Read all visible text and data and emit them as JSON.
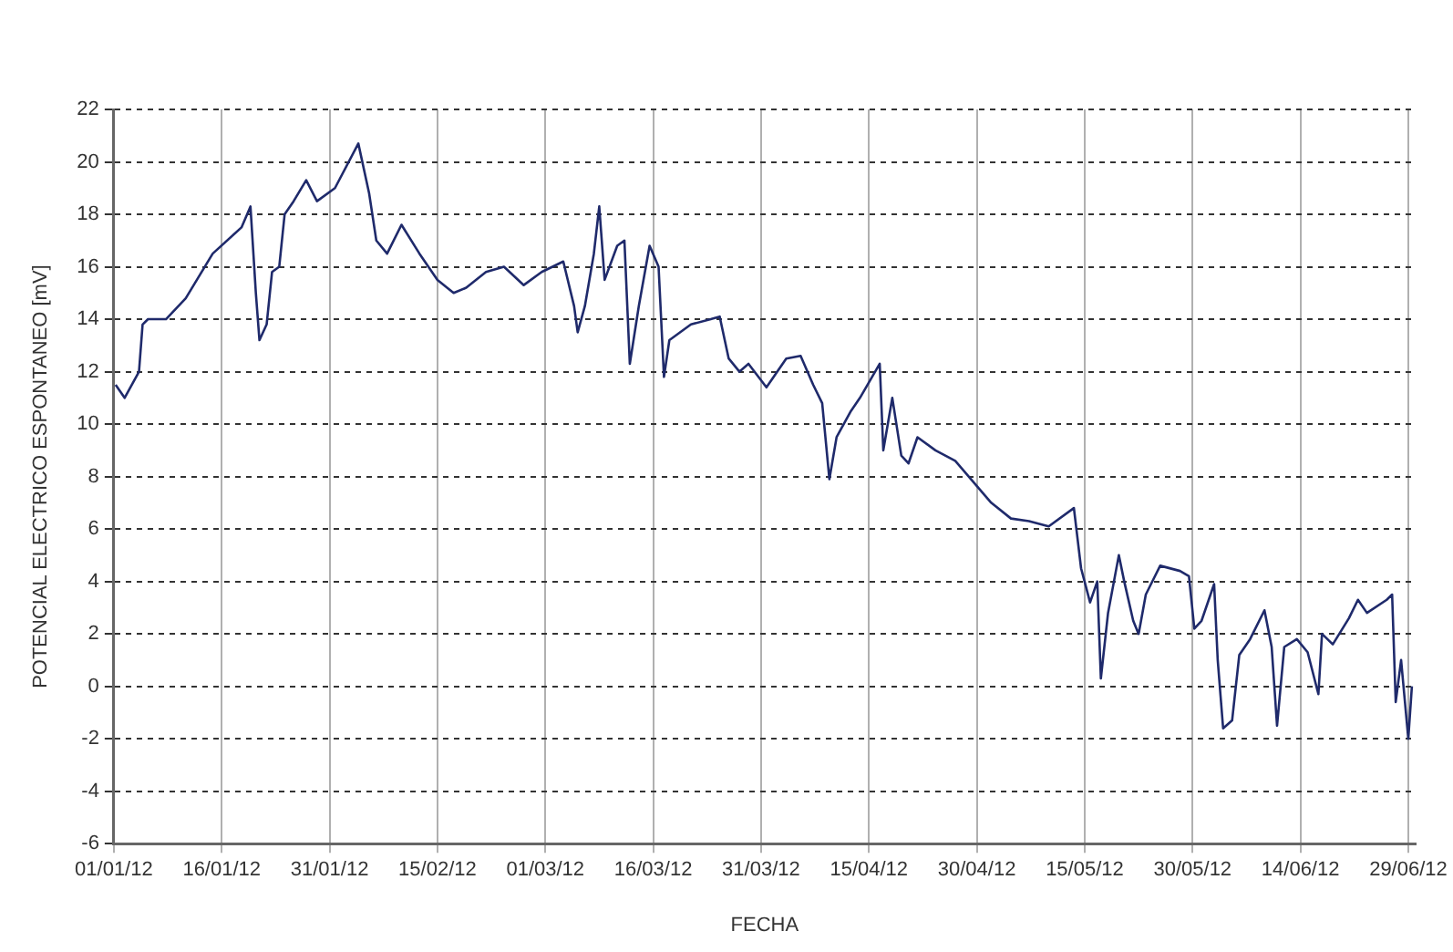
{
  "chart_data": {
    "type": "line",
    "xlabel": "FECHA",
    "ylabel": "POTENCIAL ELECTRICO ESPONTANEO [mV]",
    "color": "#1f2a6b",
    "grid": true,
    "legend": false,
    "marker": "none",
    "line_style": "solid",
    "xlim": [
      "--01-01",
      "--06-30"
    ],
    "xticks": [
      {
        "value": "--01-01",
        "label": "01/01/12"
      },
      {
        "value": "--01-16",
        "label": "16/01/12"
      },
      {
        "value": "--01-31",
        "label": "31/01/12"
      },
      {
        "value": "--02-15",
        "label": "15/02/12"
      },
      {
        "value": "--03-01",
        "label": "01/03/12"
      },
      {
        "value": "--03-16",
        "label": "16/03/12"
      },
      {
        "value": "--03-31",
        "label": "31/03/12"
      },
      {
        "value": "--04-15",
        "label": "15/04/12"
      },
      {
        "value": "--04-30",
        "label": "30/04/12"
      },
      {
        "value": "--05-15",
        "label": "15/05/12"
      },
      {
        "value": "--05-30",
        "label": "30/05/12"
      },
      {
        "value": "--06-14",
        "label": "14/06/12"
      },
      {
        "value": "--06-29",
        "label": "29/06/12"
      }
    ],
    "ylim": [
      -6,
      22
    ],
    "yticks": [
      -6,
      -4,
      -2,
      0,
      2,
      4,
      6,
      8,
      10,
      12,
      14,
      16,
      18,
      20,
      22
    ],
    "x": [
      "--01-01T06:00",
      "--01-02T12:00",
      "--01-04T12:00",
      "--01-05T00:00",
      "--01-05T18:00",
      "--01-08T06:00",
      "--01-11T00:00",
      "--01-14T18:00",
      "--01-18T18:00",
      "--01-20T00:00",
      "--01-20T18:00",
      "--01-21T06:00",
      "--01-22T06:00",
      "--01-23T00:00",
      "--01-24T00:00",
      "--01-24T18:00",
      "--01-26T00:00",
      "--01-27T18:00",
      "--01-29T06:00",
      "--01-31T18:00",
      "--02-04T00:00",
      "--02-05T12:00",
      "--02-06T12:00",
      "--02-08T00:00",
      "--02-10T00:00",
      "--02-12T12:00",
      "--02-15T00:00",
      "--02-17T06:00",
      "--02-19T00:00",
      "--02-21T18:00",
      "--02-24T06:00",
      "--02-27T00:00",
      "--02-29T12:00",
      "--03-03T12:00",
      "--03-05T00:00",
      "--03-05T12:00",
      "--03-06T12:00",
      "--03-07T18:00",
      "--03-08T12:00",
      "--03-09T06:00",
      "--03-11T00:00",
      "--03-12T00:00",
      "--03-12T18:00",
      "--03-14T00:00",
      "--03-15T12:00",
      "--03-16T18:00",
      "--03-17T12:00",
      "--03-18T06:00",
      "--03-21T06:00",
      "--03-24T00:00",
      "--03-25T06:00",
      "--03-26T12:00",
      "--03-28T00:00",
      "--03-29T06:00",
      "--03-31T18:00",
      "--04-03T12:00",
      "--04-05T12:00",
      "--04-07T06:00",
      "--04-08T12:00",
      "--04-09T12:00",
      "--04-10T12:00",
      "--04-12T12:00",
      "--04-13T18:00",
      "--04-16T12:00",
      "--04-17T00:00",
      "--04-18T06:00",
      "--04-19T12:00",
      "--04-20T12:00",
      "--04-21T18:00",
      "--04-24T06:00",
      "--04-27T00:00",
      "--04-29T12:00",
      "--05-02T00:00",
      "--05-04T18:00",
      "--05-07T06:00",
      "--05-10T00:00",
      "--05-13T12:00",
      "--05-14T12:00",
      "--05-15T18:00",
      "--05-16T18:00",
      "--05-17T06:00",
      "--05-18T06:00",
      "--05-19T18:00",
      "--05-20T12:00",
      "--05-21T18:00",
      "--05-22T12:00",
      "--05-23T12:00",
      "--05-25T12:00",
      "--05-28T06:00",
      "--05-29T12:00",
      "--05-30T06:00",
      "--05-31T06:00",
      "--06-02T00:00",
      "--06-02T12:00",
      "--06-03T06:00",
      "--06-04T12:00",
      "--06-05T12:00",
      "--06-07T00:00",
      "--06-09T00:00",
      "--06-10T00:00",
      "--06-10T18:00",
      "--06-11T18:00",
      "--06-13T12:00",
      "--06-15T00:00",
      "--06-16T12:00",
      "--06-17T00:00",
      "--06-18T12:00",
      "--06-20T18:00",
      "--06-22T00:00",
      "--06-23T06:00",
      "--06-26T00:00",
      "--06-26T18:00",
      "--06-27T06:00",
      "--06-28T00:00",
      "--06-29T00:00",
      "--06-29T12:00"
    ],
    "values": [
      11.5,
      11.0,
      12,
      13.8,
      14,
      14,
      14.8,
      16.5,
      17.5,
      18.3,
      15,
      13.2,
      13.8,
      15.8,
      16,
      18,
      18.5,
      19.3,
      18.5,
      19,
      20.7,
      18.8,
      17,
      16.5,
      17.6,
      16.5,
      15.5,
      15.0,
      15.2,
      15.8,
      16.0,
      15.3,
      15.8,
      16.2,
      14.5,
      13.5,
      14.5,
      16.5,
      18.3,
      15.5,
      16.8,
      17,
      12.3,
      14.5,
      16.8,
      16,
      11.8,
      13.2,
      13.8,
      14.0,
      14.1,
      12.5,
      12.0,
      12.3,
      11.4,
      12.5,
      12.6,
      11.5,
      10.8,
      7.9,
      9.5,
      10.5,
      11,
      12.3,
      9,
      11,
      8.8,
      8.5,
      9.5,
      9,
      8.6,
      7.8,
      7.0,
      6.4,
      6.3,
      6.1,
      6.8,
      4.5,
      3.2,
      4.0,
      0.3,
      2.8,
      5,
      4,
      2.5,
      2.0,
      3.5,
      4.6,
      4.4,
      4.2,
      2.2,
      2.5,
      3.9,
      1.0,
      -1.6,
      -1.3,
      1.2,
      1.8,
      2.9,
      1.5,
      -1.5,
      1.5,
      1.8,
      1.3,
      -0.3,
      2.0,
      1.6,
      2.6,
      3.3,
      2.8,
      3.3,
      3.5,
      -0.6,
      1.0,
      -2.0,
      0.0
    ]
  }
}
